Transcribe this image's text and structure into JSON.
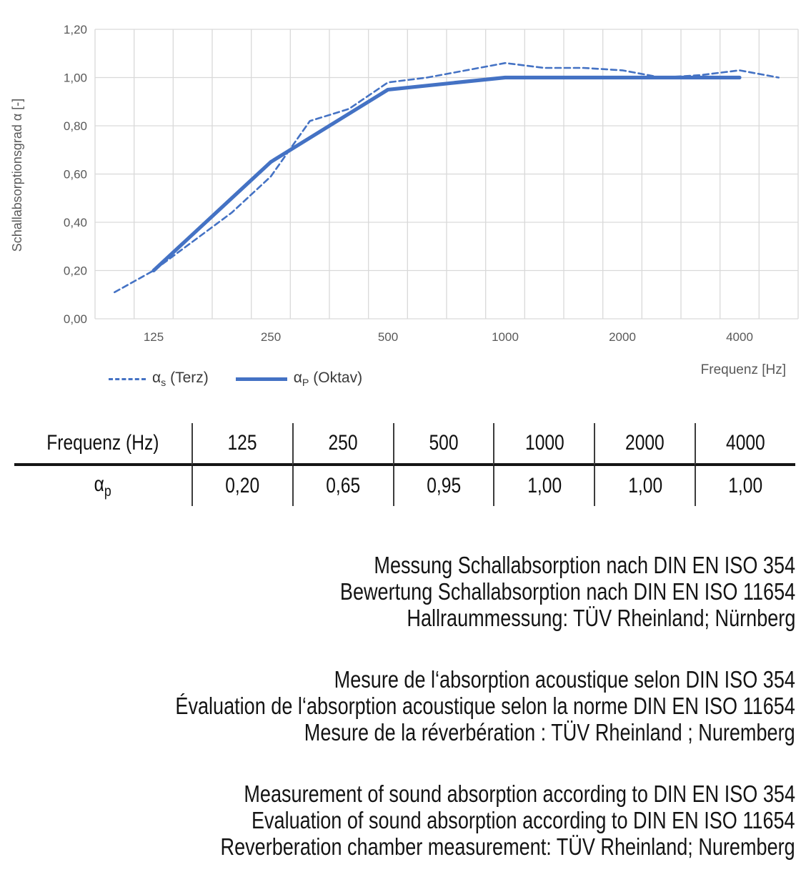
{
  "chart": {
    "y_axis_title": "Schallabsorptionsgrad α [-]",
    "x_axis_title": "Frequenz [Hz]",
    "y_tick_labels": [
      "0,00",
      "0,20",
      "0,40",
      "0,60",
      "0,80",
      "1,00",
      "1,20"
    ],
    "x_tick_labels": [
      "125",
      "250",
      "500",
      "1000",
      "2000",
      "4000"
    ],
    "colors": {
      "line": "#4472C4",
      "grid": "#D9D9D9",
      "tick": "#595959"
    },
    "legend": [
      {
        "symbol": "α",
        "sub": "s",
        "text": " (Terz)",
        "style": "dashed"
      },
      {
        "symbol": "α",
        "sub": "P",
        "text": " (Oktav)",
        "style": "solid"
      }
    ]
  },
  "chart_data": {
    "type": "line",
    "x_scale": "third-octave categories (log)",
    "grid": true,
    "ylim": [
      0,
      1.2
    ],
    "y_step": 0.2,
    "categories": [
      100,
      125,
      160,
      200,
      250,
      315,
      400,
      500,
      630,
      800,
      1000,
      1250,
      1600,
      2000,
      2500,
      3150,
      4000,
      5000
    ],
    "series": [
      {
        "name": "αs (Terz)",
        "style": "dashed",
        "x": [
          100,
          125,
          160,
          200,
          250,
          315,
          400,
          500,
          630,
          800,
          1000,
          1250,
          1600,
          2000,
          2500,
          3150,
          4000,
          5000
        ],
        "values": [
          0.11,
          0.2,
          0.32,
          0.44,
          0.59,
          0.82,
          0.87,
          0.98,
          1.0,
          1.03,
          1.06,
          1.04,
          1.04,
          1.03,
          1.0,
          1.01,
          1.03,
          1.0
        ]
      },
      {
        "name": "αP (Oktav)",
        "style": "solid",
        "x": [
          125,
          250,
          500,
          1000,
          2000,
          4000
        ],
        "values": [
          0.2,
          0.65,
          0.95,
          1.0,
          1.0,
          1.0
        ]
      }
    ],
    "title": "",
    "xlabel": "Frequenz [Hz]",
    "ylabel": "Schallabsorptionsgrad α [-]",
    "legend_position": "bottom-left"
  },
  "table": {
    "header_label": "Frequenz (Hz)",
    "header_values": [
      "125",
      "250",
      "500",
      "1000",
      "2000",
      "4000"
    ],
    "row_symbol": "α",
    "row_sub": "p",
    "row_values": [
      "0,20",
      "0,65",
      "0,95",
      "1,00",
      "1,00",
      "1,00"
    ]
  },
  "notes": {
    "de": [
      "Messung Schallabsorption nach DIN EN ISO 354",
      "Bewertung Schallabsorption nach DIN EN ISO 11654",
      "Hallraummessung: TÜV Rheinland; Nürnberg"
    ],
    "fr": [
      "Mesure de l‘absorption acoustique selon DIN ISO 354",
      "Évaluation de l‘absorption acoustique selon la norme DIN EN ISO 11654",
      "Mesure de la réverbération : TÜV Rheinland ; Nuremberg"
    ],
    "en": [
      "Measurement of sound absorption according to DIN EN ISO 354",
      "Evaluation of sound absorption according to DIN EN ISO 11654",
      "Reverberation chamber measurement: TÜV Rheinland; Nuremberg"
    ]
  }
}
